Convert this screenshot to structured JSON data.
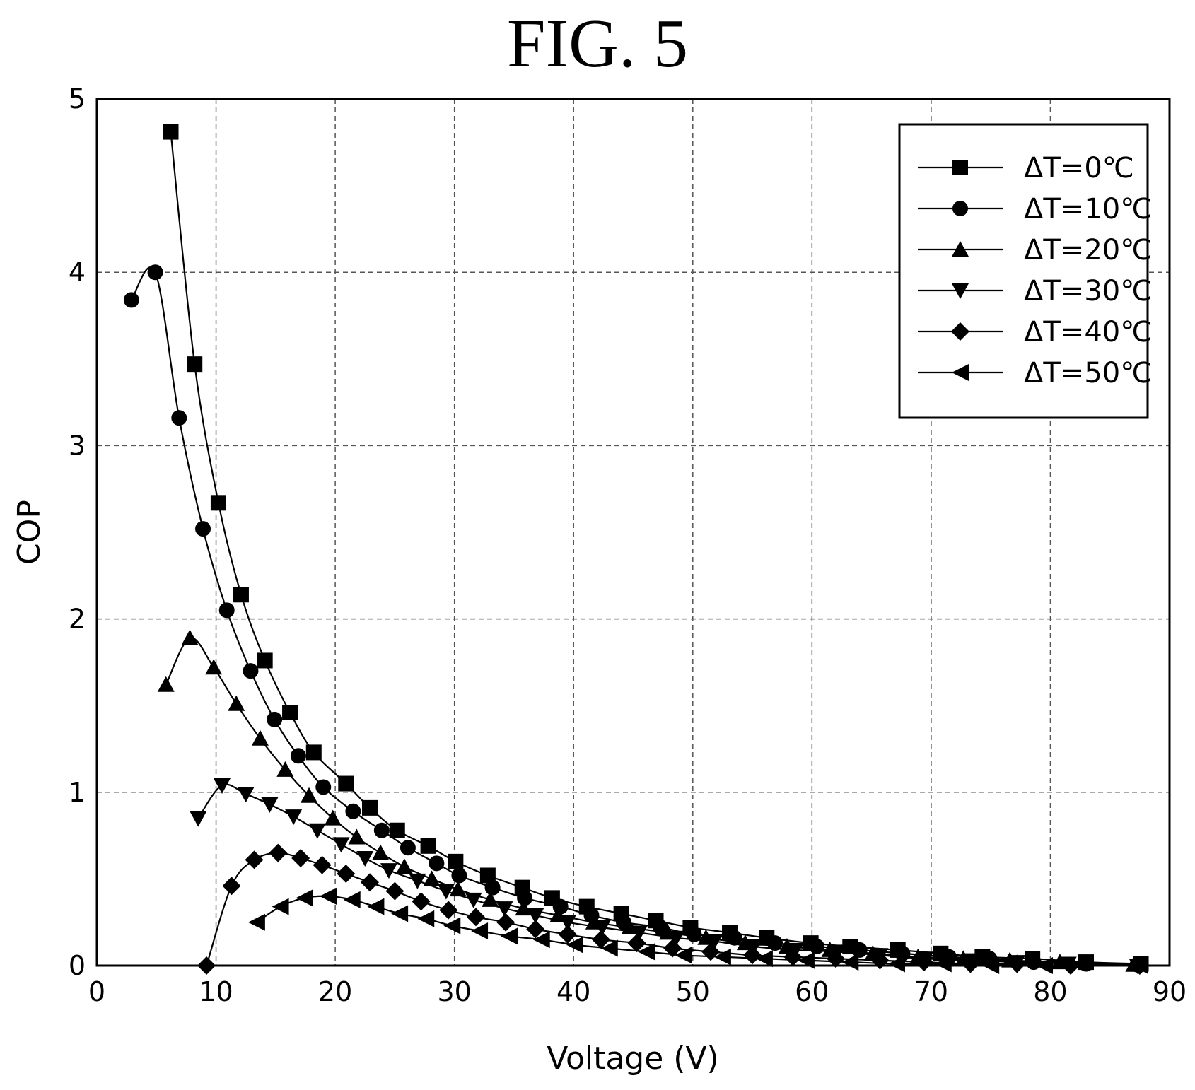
{
  "figure_title": "FIG. 5",
  "chart_data": {
    "type": "line",
    "xlabel": "Voltage (V)",
    "ylabel": "COP",
    "xlim": [
      0,
      90
    ],
    "ylim": [
      0,
      5
    ],
    "x_ticks": [
      "0",
      "10",
      "20",
      "30",
      "40",
      "50",
      "60",
      "70",
      "80",
      "90"
    ],
    "y_ticks": [
      "0",
      "1",
      "2",
      "3",
      "4",
      "5"
    ],
    "grid": true,
    "grid_style": "dashed",
    "legend_position": "top-right",
    "series": [
      {
        "name": "ΔT=0℃",
        "marker": "square",
        "x": [
          6.2,
          8.2,
          10.2,
          12.1,
          14.1,
          16.2,
          18.2,
          20.9,
          22.9,
          25.2,
          27.8,
          30.1,
          32.8,
          35.7,
          38.2,
          41.1,
          44.0,
          46.9,
          49.8,
          53.1,
          56.2,
          59.9,
          63.2,
          67.2,
          70.8,
          74.3,
          78.5,
          83.0,
          87.6
        ],
        "y": [
          4.81,
          3.47,
          2.67,
          2.14,
          1.76,
          1.46,
          1.23,
          1.05,
          0.91,
          0.78,
          0.69,
          0.6,
          0.52,
          0.45,
          0.39,
          0.34,
          0.3,
          0.26,
          0.22,
          0.19,
          0.16,
          0.13,
          0.11,
          0.09,
          0.07,
          0.05,
          0.04,
          0.02,
          0.01
        ]
      },
      {
        "name": "ΔT=10℃",
        "marker": "circle",
        "x": [
          2.9,
          4.9,
          6.9,
          8.9,
          10.9,
          12.9,
          14.9,
          16.9,
          19.0,
          21.5,
          23.9,
          26.1,
          28.5,
          30.4,
          33.2,
          35.9,
          38.9,
          41.5,
          44.2,
          47.3,
          50.1,
          53.5,
          56.9,
          60.4,
          64.0,
          67.6,
          71.5,
          74.9,
          78.6,
          83.0,
          87.3
        ],
        "y": [
          3.84,
          4.0,
          3.16,
          2.52,
          2.05,
          1.7,
          1.42,
          1.21,
          1.03,
          0.89,
          0.78,
          0.68,
          0.59,
          0.52,
          0.45,
          0.39,
          0.34,
          0.29,
          0.25,
          0.22,
          0.18,
          0.16,
          0.13,
          0.11,
          0.09,
          0.07,
          0.05,
          0.04,
          0.02,
          0.01,
          0.005
        ]
      },
      {
        "name": "ΔT=20℃",
        "marker": "triangle-up",
        "x": [
          5.8,
          7.8,
          9.8,
          11.7,
          13.7,
          15.8,
          17.8,
          19.8,
          21.8,
          23.8,
          25.8,
          28.1,
          30.3,
          33.0,
          35.8,
          38.7,
          41.7,
          44.7,
          47.9,
          51.1,
          54.4,
          57.9,
          61.5,
          65.1,
          68.9,
          72.7,
          76.6,
          80.8,
          87.0
        ],
        "y": [
          1.62,
          1.89,
          1.72,
          1.51,
          1.31,
          1.13,
          0.98,
          0.85,
          0.74,
          0.65,
          0.57,
          0.5,
          0.44,
          0.38,
          0.33,
          0.29,
          0.25,
          0.22,
          0.19,
          0.16,
          0.13,
          0.11,
          0.09,
          0.07,
          0.05,
          0.04,
          0.03,
          0.02,
          0.005
        ]
      },
      {
        "name": "ΔT=30℃",
        "marker": "triangle-down",
        "x": [
          8.5,
          10.5,
          12.5,
          14.5,
          16.5,
          18.5,
          20.5,
          22.5,
          24.5,
          26.9,
          29.3,
          31.6,
          34.2,
          36.8,
          39.5,
          42.4,
          45.5,
          48.6,
          51.8,
          55.1,
          58.6,
          62.1,
          65.7,
          69.5,
          73.3,
          77.2,
          81.5,
          87.3
        ],
        "y": [
          0.85,
          1.04,
          0.99,
          0.93,
          0.86,
          0.78,
          0.7,
          0.62,
          0.55,
          0.49,
          0.43,
          0.38,
          0.33,
          0.29,
          0.25,
          0.22,
          0.19,
          0.16,
          0.14,
          0.11,
          0.09,
          0.08,
          0.06,
          0.04,
          0.03,
          0.02,
          0.01,
          0.0
        ]
      },
      {
        "name": "ΔT=40℃",
        "marker": "diamond",
        "x": [
          9.2,
          11.3,
          13.2,
          15.2,
          17.1,
          18.9,
          20.9,
          22.9,
          25.0,
          27.2,
          29.5,
          31.8,
          34.3,
          36.8,
          39.5,
          42.3,
          45.3,
          48.3,
          51.5,
          55.0,
          58.4,
          62.0,
          65.7,
          69.4,
          73.3,
          77.2,
          81.7,
          87.5
        ],
        "y": [
          0.0,
          0.46,
          0.61,
          0.65,
          0.62,
          0.58,
          0.53,
          0.48,
          0.43,
          0.37,
          0.32,
          0.28,
          0.25,
          0.21,
          0.18,
          0.15,
          0.13,
          0.1,
          0.08,
          0.06,
          0.05,
          0.04,
          0.03,
          0.02,
          0.01,
          0.01,
          0.0,
          0.0
        ]
      },
      {
        "name": "ΔT=50℃",
        "marker": "triangle-left",
        "x": [
          13.4,
          15.4,
          17.4,
          19.4,
          21.4,
          23.4,
          25.4,
          27.6,
          29.8,
          32.1,
          34.6,
          37.3,
          40.1,
          43.0,
          46.1,
          49.2,
          52.5,
          56.0,
          59.5,
          63.2,
          67.1,
          71.0,
          75.0,
          79.5,
          87.5
        ],
        "y": [
          0.25,
          0.34,
          0.39,
          0.4,
          0.38,
          0.34,
          0.3,
          0.27,
          0.23,
          0.2,
          0.17,
          0.15,
          0.12,
          0.1,
          0.08,
          0.06,
          0.05,
          0.04,
          0.03,
          0.02,
          0.01,
          0.01,
          0.0,
          0.0,
          0.0
        ]
      }
    ]
  }
}
